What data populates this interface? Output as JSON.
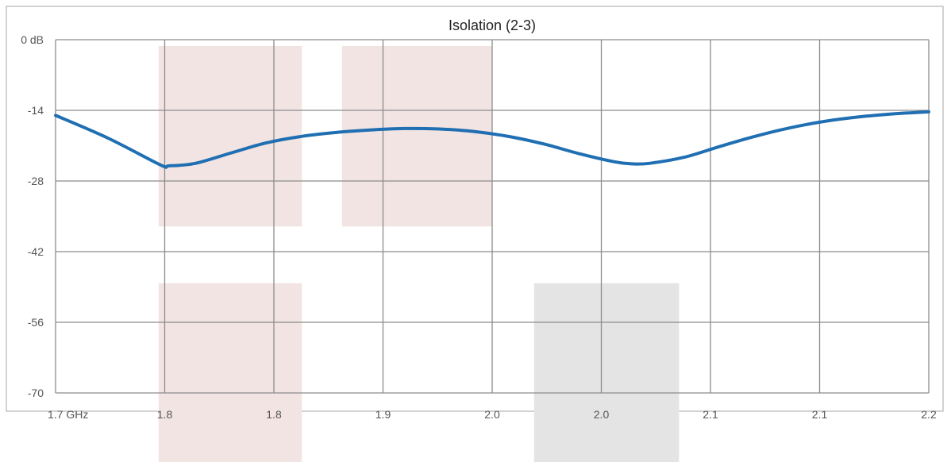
{
  "chart_data": {
    "type": "line",
    "title": "Isolation (2-3)",
    "xlabel": "",
    "ylabel": "",
    "x_tick_labels": [
      "1.7 GHz",
      "1.8",
      "1.8",
      "1.9",
      "2.0",
      "2.0",
      "2.1",
      "2.1",
      "2.2"
    ],
    "y_tick_labels": [
      "0 dB",
      "-14",
      "-28",
      "-42",
      "-56",
      "-70"
    ],
    "xlim": [
      1.7,
      2.2
    ],
    "ylim": [
      -70,
      0
    ],
    "grid": true,
    "legend": "none",
    "series": [
      {
        "color": "#1f6fb2",
        "x": [
          1.7,
          1.73,
          1.76,
          1.765,
          1.78,
          1.8,
          1.82,
          1.84,
          1.86,
          1.88,
          1.9,
          1.92,
          1.94,
          1.96,
          1.98,
          2.0,
          2.02,
          2.03,
          2.04,
          2.06,
          2.08,
          2.1,
          2.12,
          2.14,
          2.16,
          2.18,
          2.2
        ],
        "y": [
          -15,
          -19.5,
          -24.8,
          -25,
          -24.5,
          -22.5,
          -20.5,
          -19.2,
          -18.4,
          -17.9,
          -17.6,
          -17.7,
          -18.2,
          -19.2,
          -20.7,
          -22.6,
          -24.2,
          -24.6,
          -24.5,
          -23.3,
          -21.2,
          -19.2,
          -17.5,
          -16.2,
          -15.3,
          -14.7,
          -14.3
        ]
      }
    ],
    "bands": [
      {
        "x0": 1.759,
        "x1": 1.841,
        "y0": 0,
        "y1": -37,
        "color": "#f3e4e4"
      },
      {
        "x0": 1.864,
        "x1": 1.95,
        "y0": 0,
        "y1": -37,
        "color": "#f3e4e4"
      },
      {
        "x0": 1.759,
        "x1": 1.841,
        "y0": -47,
        "y1": -84,
        "color": "#f3e4e4"
      },
      {
        "x0": 1.974,
        "x1": 2.057,
        "y0": -47,
        "y1": -84,
        "color": "#e4e4e4"
      }
    ]
  }
}
